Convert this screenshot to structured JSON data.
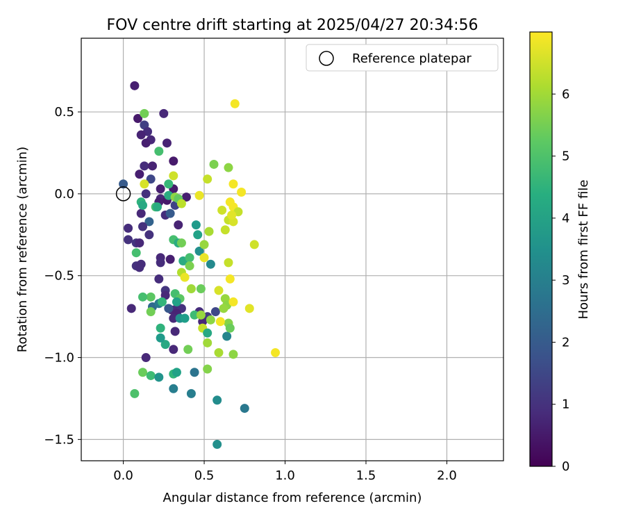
{
  "chart_data": {
    "type": "scatter",
    "title": "FOV centre drift starting at 2025/04/27 20:34:56",
    "xlabel": "Angular distance from reference (arcmin)",
    "ylabel": "Rotation from reference (arcmin)",
    "xlim": [
      -0.26,
      2.35
    ],
    "ylim": [
      -1.63,
      0.95
    ],
    "xticks": [
      0.0,
      0.5,
      1.0,
      1.5,
      2.0
    ],
    "xtick_labels": [
      "0.0",
      "0.5",
      "1.0",
      "1.5",
      "2.0"
    ],
    "yticks": [
      0.5,
      0.0,
      -0.5,
      -1.0,
      -1.5
    ],
    "ytick_labels": [
      "0.5",
      "0.0",
      "−0.5",
      "−1.0",
      "−1.5"
    ],
    "grid": true,
    "legend": {
      "location": "upper right",
      "entries": [
        "Reference platepar"
      ]
    },
    "reference_point": {
      "x": 0.0,
      "y": 0.0,
      "label": "Reference platepar"
    },
    "colorbar": {
      "label": "Hours from first FF file",
      "colormap": "viridis",
      "range": [
        0,
        7
      ],
      "ticks": [
        0,
        1,
        2,
        3,
        4,
        5,
        6
      ],
      "tick_labels": [
        "0",
        "1",
        "2",
        "3",
        "4",
        "5",
        "6"
      ]
    },
    "series": [
      {
        "points": [
          [
            0.07,
            0.66,
            0.6
          ],
          [
            0.25,
            0.49,
            0.8
          ],
          [
            0.09,
            0.46,
            0.5
          ],
          [
            0.13,
            0.42,
            1.3
          ],
          [
            0.15,
            0.38,
            0.9
          ],
          [
            0.11,
            0.36,
            0.7
          ],
          [
            0.17,
            0.33,
            0.8
          ],
          [
            0.14,
            0.31,
            0.6
          ],
          [
            0.27,
            0.31,
            0.7
          ],
          [
            0.13,
            0.17,
            0.9
          ],
          [
            0.18,
            0.17,
            0.7
          ],
          [
            0.31,
            0.2,
            0.5
          ],
          [
            0.1,
            0.12,
            0.6
          ],
          [
            0.17,
            0.09,
            1.5
          ],
          [
            0.23,
            0.03,
            0.6
          ],
          [
            0.31,
            0.03,
            0.5
          ],
          [
            0.23,
            -0.03,
            0.8
          ],
          [
            0.22,
            -0.05,
            0.6
          ],
          [
            0.27,
            -0.04,
            0.5
          ],
          [
            0.32,
            -0.07,
            1.4
          ],
          [
            0.39,
            -0.02,
            0.6
          ],
          [
            0.14,
            0.0,
            1.0
          ],
          [
            0.11,
            -0.12,
            0.8
          ],
          [
            0.16,
            -0.17,
            2.2
          ],
          [
            0.12,
            -0.2,
            1.0
          ],
          [
            0.16,
            -0.25,
            1.0
          ],
          [
            0.26,
            -0.13,
            0.9
          ],
          [
            0.29,
            -0.12,
            2.0
          ],
          [
            0.34,
            -0.19,
            0.7
          ],
          [
            0.03,
            -0.21,
            0.9
          ],
          [
            0.03,
            -0.28,
            1.0
          ],
          [
            0.08,
            -0.3,
            1.1
          ],
          [
            0.1,
            -0.3,
            0.8
          ],
          [
            0.23,
            -0.39,
            0.8
          ],
          [
            0.23,
            -0.42,
            0.9
          ],
          [
            0.29,
            -0.4,
            0.6
          ],
          [
            0.08,
            -0.44,
            1.0
          ],
          [
            0.11,
            -0.43,
            0.9
          ],
          [
            0.1,
            -0.45,
            0.9
          ],
          [
            0.22,
            -0.52,
            0.9
          ],
          [
            0.26,
            -0.59,
            1.1
          ],
          [
            0.26,
            -0.62,
            0.8
          ],
          [
            0.05,
            -0.7,
            0.8
          ],
          [
            0.3,
            -0.71,
            0.8
          ],
          [
            0.33,
            -0.7,
            0.9
          ],
          [
            0.36,
            -0.7,
            1.0
          ],
          [
            0.33,
            -0.73,
            0.7
          ],
          [
            0.31,
            -0.76,
            0.8
          ],
          [
            0.47,
            -0.72,
            0.9
          ],
          [
            0.52,
            -0.75,
            1.2
          ],
          [
            0.49,
            -0.78,
            0.8
          ],
          [
            0.57,
            -0.72,
            1.5
          ],
          [
            0.32,
            -0.84,
            0.8
          ],
          [
            0.31,
            -0.95,
            0.8
          ],
          [
            0.14,
            -1.0,
            0.8
          ],
          [
            0.18,
            -0.69,
            2.4
          ],
          [
            0.22,
            -0.67,
            2.9
          ],
          [
            0.24,
            -0.66,
            4.6
          ],
          [
            0.17,
            -0.63,
            5.2
          ],
          [
            0.17,
            -0.72,
            5.5
          ],
          [
            0.12,
            -1.09,
            5.4
          ],
          [
            0.17,
            -1.11,
            4.8
          ],
          [
            0.07,
            -1.22,
            5.0
          ],
          [
            0.12,
            -0.63,
            4.9
          ],
          [
            0.22,
            -1.12,
            3.6
          ],
          [
            0.31,
            -1.1,
            4.6
          ],
          [
            0.26,
            -0.92,
            4.2
          ],
          [
            0.23,
            -0.88,
            3.8
          ],
          [
            0.23,
            -0.82,
            4.5
          ],
          [
            0.32,
            -0.61,
            4.9
          ],
          [
            0.35,
            -0.76,
            3.5
          ],
          [
            0.35,
            -0.64,
            5.2
          ],
          [
            0.33,
            -0.66,
            4.0
          ],
          [
            0.31,
            -0.28,
            4.9
          ],
          [
            0.34,
            -0.3,
            4.3
          ],
          [
            0.36,
            -0.3,
            5.5
          ],
          [
            0.37,
            -0.41,
            4.3
          ],
          [
            0.41,
            -0.39,
            4.9
          ],
          [
            0.41,
            -0.44,
            5.6
          ],
          [
            0.44,
            -0.74,
            4.8
          ],
          [
            0.48,
            -0.74,
            5.9
          ],
          [
            0.49,
            -0.82,
            6.4
          ],
          [
            0.45,
            -0.19,
            3.8
          ],
          [
            0.46,
            -0.25,
            4.0
          ],
          [
            0.47,
            -0.35,
            3.5
          ],
          [
            0.5,
            -0.31,
            5.9
          ],
          [
            0.5,
            -0.39,
            6.8
          ],
          [
            0.54,
            -0.43,
            3.3
          ],
          [
            0.59,
            -0.59,
            6.6
          ],
          [
            0.63,
            -0.64,
            5.9
          ],
          [
            0.64,
            -0.68,
            5.8
          ],
          [
            0.65,
            -0.79,
            5.7
          ],
          [
            0.64,
            -0.87,
            3.2
          ],
          [
            0.66,
            -0.82,
            5.4
          ],
          [
            0.62,
            -0.7,
            5.9
          ],
          [
            0.6,
            -0.78,
            6.9
          ],
          [
            0.68,
            -0.66,
            6.9
          ],
          [
            0.52,
            -0.91,
            6.0
          ],
          [
            0.52,
            -1.07,
            5.7
          ],
          [
            0.59,
            -0.97,
            6.1
          ],
          [
            0.68,
            -0.98,
            5.8
          ],
          [
            0.44,
            -1.09,
            2.7
          ],
          [
            0.42,
            -1.22,
            3.0
          ],
          [
            0.31,
            -1.19,
            3.0
          ],
          [
            0.58,
            -1.26,
            3.4
          ],
          [
            0.58,
            -1.53,
            3.5
          ],
          [
            0.75,
            -1.31,
            2.8
          ],
          [
            0.33,
            -1.09,
            4.0
          ],
          [
            0.4,
            -0.95,
            5.5
          ],
          [
            0.36,
            -0.48,
            6.2
          ],
          [
            0.38,
            -0.51,
            6.8
          ],
          [
            0.42,
            -0.58,
            6.0
          ],
          [
            0.48,
            -0.58,
            5.4
          ],
          [
            0.13,
            0.49,
            5.5
          ],
          [
            0.22,
            0.26,
            4.9
          ],
          [
            0.31,
            0.11,
            6.5
          ],
          [
            0.28,
            0.06,
            4.7
          ],
          [
            0.13,
            0.06,
            6.6
          ],
          [
            0.2,
            -0.08,
            4.9
          ],
          [
            0.21,
            -0.08,
            4.3
          ],
          [
            0.11,
            -0.05,
            4.5
          ],
          [
            0.12,
            -0.07,
            4.2
          ],
          [
            0.28,
            -0.01,
            4.3
          ],
          [
            0.32,
            -0.02,
            5.8
          ],
          [
            0.34,
            -0.03,
            5.3
          ],
          [
            0.36,
            -0.06,
            6.3
          ],
          [
            0.47,
            -0.01,
            6.8
          ],
          [
            0.52,
            0.09,
            6.4
          ],
          [
            0.56,
            0.18,
            5.6
          ],
          [
            0.65,
            0.16,
            5.8
          ],
          [
            0.68,
            0.06,
            6.9
          ],
          [
            0.66,
            -0.05,
            6.9
          ],
          [
            0.68,
            -0.08,
            6.9
          ],
          [
            0.73,
            0.01,
            6.9
          ],
          [
            0.61,
            -0.1,
            6.5
          ],
          [
            0.65,
            -0.16,
            6.4
          ],
          [
            0.68,
            -0.17,
            6.6
          ],
          [
            0.71,
            -0.11,
            6.4
          ],
          [
            0.67,
            -0.13,
            6.7
          ],
          [
            0.63,
            -0.22,
            6.4
          ],
          [
            0.53,
            -0.23,
            6.1
          ],
          [
            0.65,
            -0.42,
            6.4
          ],
          [
            0.66,
            -0.52,
            6.9
          ],
          [
            0.78,
            -0.7,
            6.7
          ],
          [
            0.81,
            -0.31,
            6.5
          ],
          [
            0.94,
            -0.97,
            6.9
          ],
          [
            0.69,
            0.55,
            6.9
          ],
          [
            0.54,
            -0.77,
            5.8
          ],
          [
            0.52,
            -0.85,
            4.2
          ],
          [
            0.28,
            -0.7,
            1.9
          ],
          [
            0.38,
            -0.76,
            3.9
          ],
          [
            0.08,
            -0.36,
            4.9
          ],
          [
            0.0,
            0.06,
            2.0
          ]
        ]
      }
    ]
  }
}
